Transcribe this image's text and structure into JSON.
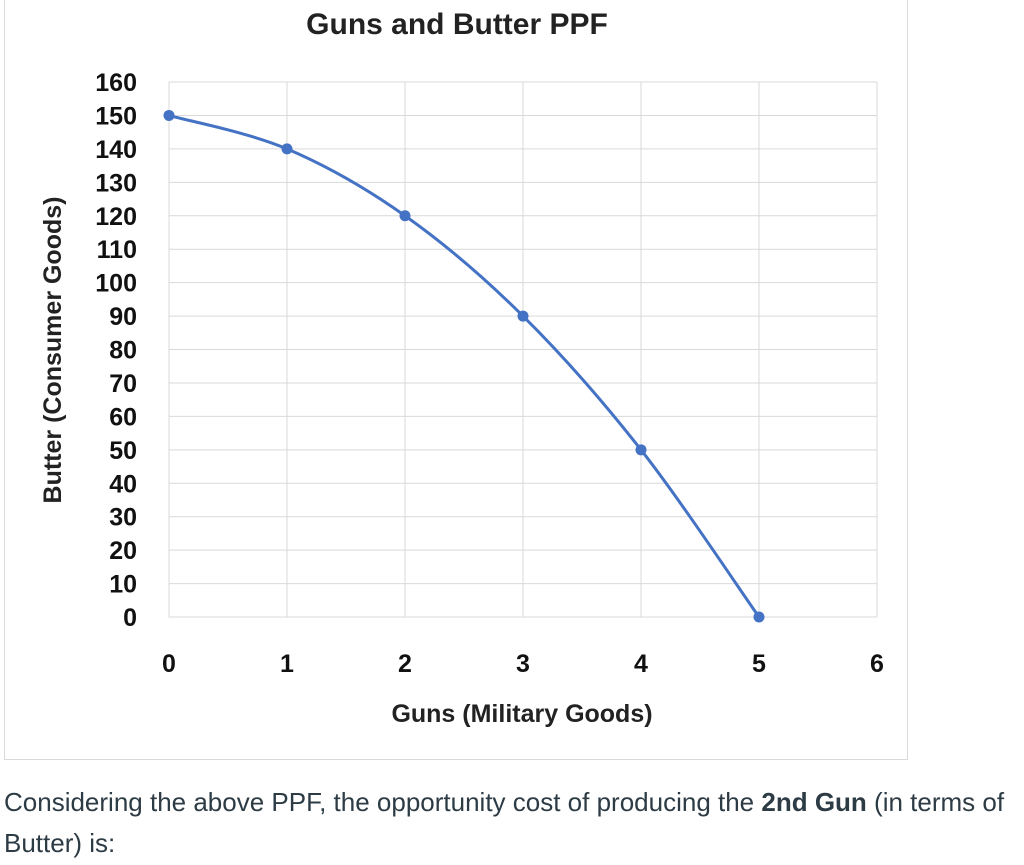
{
  "chart_data": {
    "type": "line",
    "title": "Guns and Butter PPF",
    "xlabel": "Guns (Military Goods)",
    "ylabel": "Butter (Consumer Goods)",
    "xlim": [
      0,
      6
    ],
    "ylim": [
      0,
      160
    ],
    "x_ticks": [
      "0",
      "1",
      "2",
      "3",
      "4",
      "5",
      "6"
    ],
    "y_ticks": [
      "0",
      "10",
      "20",
      "30",
      "40",
      "50",
      "60",
      "70",
      "80",
      "90",
      "100",
      "110",
      "120",
      "130",
      "140",
      "150",
      "160"
    ],
    "grid": true,
    "series": [
      {
        "x": [
          0,
          1,
          2,
          3,
          4,
          5
        ],
        "values": [
          150,
          140,
          120,
          90,
          50,
          0
        ],
        "color": "#4472c4"
      }
    ]
  },
  "question": {
    "text_before": "Considering the above PPF, the opportunity cost of producing the ",
    "bold": "2nd Gun",
    "text_after": " (in terms of Butter) is:"
  }
}
